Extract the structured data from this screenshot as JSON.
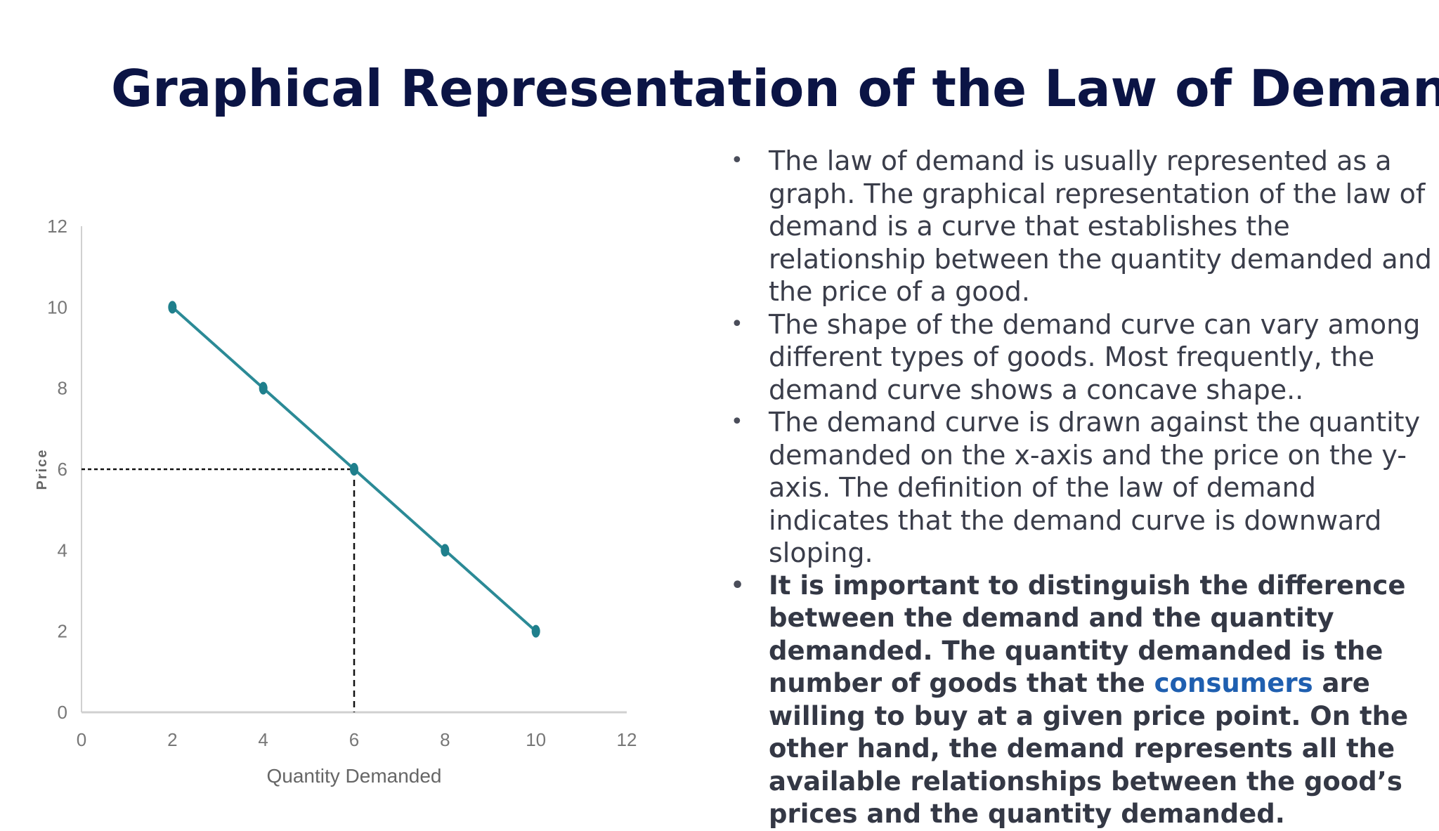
{
  "slide": {
    "title": "Graphical Representation of the Law of Demand"
  },
  "colors": {
    "title": "#0b1445",
    "line": "#2b8a96",
    "marker": "#1f7f8c",
    "axis": "#d0d0d0",
    "text": "#3a3d4a",
    "link": "#1f5fb0"
  },
  "chart_data": {
    "type": "line",
    "x": [
      2,
      4,
      6,
      8,
      10
    ],
    "series": [
      {
        "values": [
          10,
          8,
          6,
          4,
          2
        ]
      }
    ],
    "xlabel": "Quantity Demanded",
    "ylabel": "Price",
    "xlim": [
      0,
      12
    ],
    "ylim": [
      0,
      12
    ],
    "xticks": [
      "0",
      "2",
      "4",
      "6",
      "8",
      "10",
      "12"
    ],
    "yticks": [
      "0",
      "2",
      "4",
      "6",
      "8",
      "10",
      "12"
    ],
    "grid": false,
    "legend": "none",
    "highlight_point": {
      "x": 6,
      "y": 6,
      "style": "dashed guide lines to both axes"
    }
  },
  "bullets": [
    {
      "text": "The law of demand is usually represented as a graph. The graphical representation of the law of demand is a curve that establishes the relationship between the quantity demanded and the price of a good."
    },
    {
      "text": "The shape of the demand curve can vary among different types of goods. Most frequently, the demand curve shows a concave shape.."
    },
    {
      "text": "The demand curve is drawn against the quantity demanded on the x-axis and the price on the y-axis. The definition of the law of demand indicates that the demand curve is downward sloping."
    },
    {
      "before": "It is important to distinguish the difference between the demand and the quantity demanded. The quantity demanded is the number of goods that the ",
      "link": "consumers",
      "after": " are willing to buy at a given price point. On the other hand, the demand represents all the available relationships between the good’s prices and the quantity demanded."
    }
  ],
  "bullet_glyph": "•"
}
